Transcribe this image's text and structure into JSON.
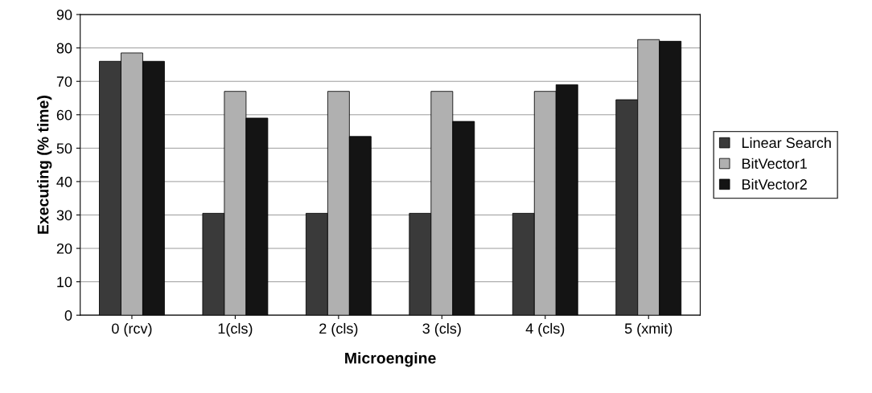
{
  "chart_data": {
    "type": "bar",
    "xlabel": "Microengine",
    "ylabel": "Executing (% time)",
    "categories": [
      "0 (rcv)",
      "1(cls)",
      "2 (cls)",
      "3 (cls)",
      "4 (cls)",
      "5 (xmit)"
    ],
    "series": [
      {
        "name": "Linear Search",
        "color": "#3a3a3a",
        "values": [
          76,
          30.5,
          30.5,
          30.5,
          30.5,
          64.5
        ]
      },
      {
        "name": "BitVector1",
        "color": "#b0b0b0",
        "values": [
          78.5,
          67,
          67,
          67,
          67,
          82.5
        ]
      },
      {
        "name": "BitVector2",
        "color": "#141414",
        "values": [
          76,
          59,
          53.5,
          58,
          69,
          82
        ]
      }
    ],
    "ylim": [
      0,
      90
    ],
    "yticks": [
      0,
      10,
      20,
      30,
      40,
      50,
      60,
      70,
      80,
      90
    ],
    "grid": "y",
    "legend": "right"
  }
}
